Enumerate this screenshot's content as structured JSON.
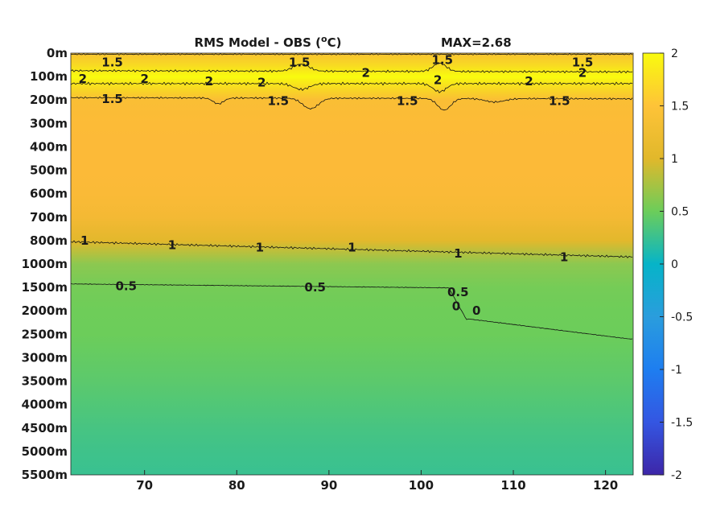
{
  "chart_data": {
    "type": "heatmap",
    "title": "RMS Model - OBS (",
    "title_sup": "o",
    "title_tail": "C)",
    "max_label": "MAX=2.68",
    "xlabel": "",
    "ylabel": "",
    "x_ticks": [
      70,
      80,
      90,
      100,
      110,
      120
    ],
    "xlim": [
      62,
      123
    ],
    "y_tick_labels": [
      "0m",
      "100m",
      "200m",
      "300m",
      "400m",
      "500m",
      "600m",
      "700m",
      "800m",
      "1000m",
      "1500m",
      "2000m",
      "2500m",
      "3000m",
      "3500m",
      "4000m",
      "4500m",
      "5000m",
      "5500m"
    ],
    "colorbar": {
      "ticks": [
        "2",
        "1.5",
        "1",
        "0.5",
        "0",
        "-0.5",
        "-1",
        "-1.5",
        "-2"
      ],
      "range": [
        -2,
        2
      ],
      "colormap": "parula"
    },
    "depth_profile_rms": [
      {
        "level": 0.0,
        "value": 1.55
      },
      {
        "level": 0.5,
        "value": 1.75
      },
      {
        "level": 1.0,
        "value": 2.15
      },
      {
        "level": 1.5,
        "value": 1.75
      },
      {
        "level": 2.0,
        "value": 1.45
      },
      {
        "level": 3.0,
        "value": 1.38
      },
      {
        "level": 4.0,
        "value": 1.36
      },
      {
        "level": 5.0,
        "value": 1.35
      },
      {
        "level": 6.0,
        "value": 1.33
      },
      {
        "level": 7.0,
        "value": 1.25
      },
      {
        "level": 8.0,
        "value": 1.02
      },
      {
        "level": 9.0,
        "value": 0.85
      },
      {
        "level": 10.0,
        "value": 0.6
      },
      {
        "level": 11.0,
        "value": 0.52
      },
      {
        "level": 12.0,
        "value": 0.5
      },
      {
        "level": 13.0,
        "value": 0.46
      },
      {
        "level": 14.0,
        "value": 0.42
      },
      {
        "level": 15.0,
        "value": 0.37
      },
      {
        "level": 16.0,
        "value": 0.32
      },
      {
        "level": 17.0,
        "value": 0.28
      },
      {
        "level": 18.0,
        "value": 0.25
      }
    ],
    "contour_labels": [
      {
        "text": "1.5",
        "x": 66.5,
        "level": 0.4
      },
      {
        "text": "1.5",
        "x": 86.8,
        "level": 0.4
      },
      {
        "text": "1.5",
        "x": 102.3,
        "level": 0.3
      },
      {
        "text": "1.5",
        "x": 117.5,
        "level": 0.4
      },
      {
        "text": "2",
        "x": 63.3,
        "level": 1.1
      },
      {
        "text": "2",
        "x": 70.0,
        "level": 1.1
      },
      {
        "text": "2",
        "x": 77.0,
        "level": 1.2
      },
      {
        "text": "2",
        "x": 82.7,
        "level": 1.25
      },
      {
        "text": "2",
        "x": 94.0,
        "level": 0.85
      },
      {
        "text": "2",
        "x": 101.8,
        "level": 1.15
      },
      {
        "text": "2",
        "x": 111.7,
        "level": 1.2
      },
      {
        "text": "2",
        "x": 117.5,
        "level": 0.85
      },
      {
        "text": "1.5",
        "x": 66.5,
        "level": 1.95
      },
      {
        "text": "1.5",
        "x": 84.5,
        "level": 2.05
      },
      {
        "text": "1.5",
        "x": 98.5,
        "level": 2.05
      },
      {
        "text": "1.5",
        "x": 115.0,
        "level": 2.05
      },
      {
        "text": "1",
        "x": 63.5,
        "level": 8.0
      },
      {
        "text": "1",
        "x": 73.0,
        "level": 8.2
      },
      {
        "text": "1",
        "x": 82.5,
        "level": 8.3
      },
      {
        "text": "1",
        "x": 92.5,
        "level": 8.3
      },
      {
        "text": "1",
        "x": 104.0,
        "level": 8.55
      },
      {
        "text": "1",
        "x": 115.5,
        "level": 8.7
      },
      {
        "text": "0.5",
        "x": 68.0,
        "level": 9.95
      },
      {
        "text": "0.5",
        "x": 88.5,
        "level": 10.0
      },
      {
        "text": "0.5",
        "x": 104.0,
        "level": 10.2
      },
      {
        "text": "0",
        "x": 103.8,
        "level": 10.8
      },
      {
        "text": "0",
        "x": 106.0,
        "level": 11.0
      }
    ]
  }
}
